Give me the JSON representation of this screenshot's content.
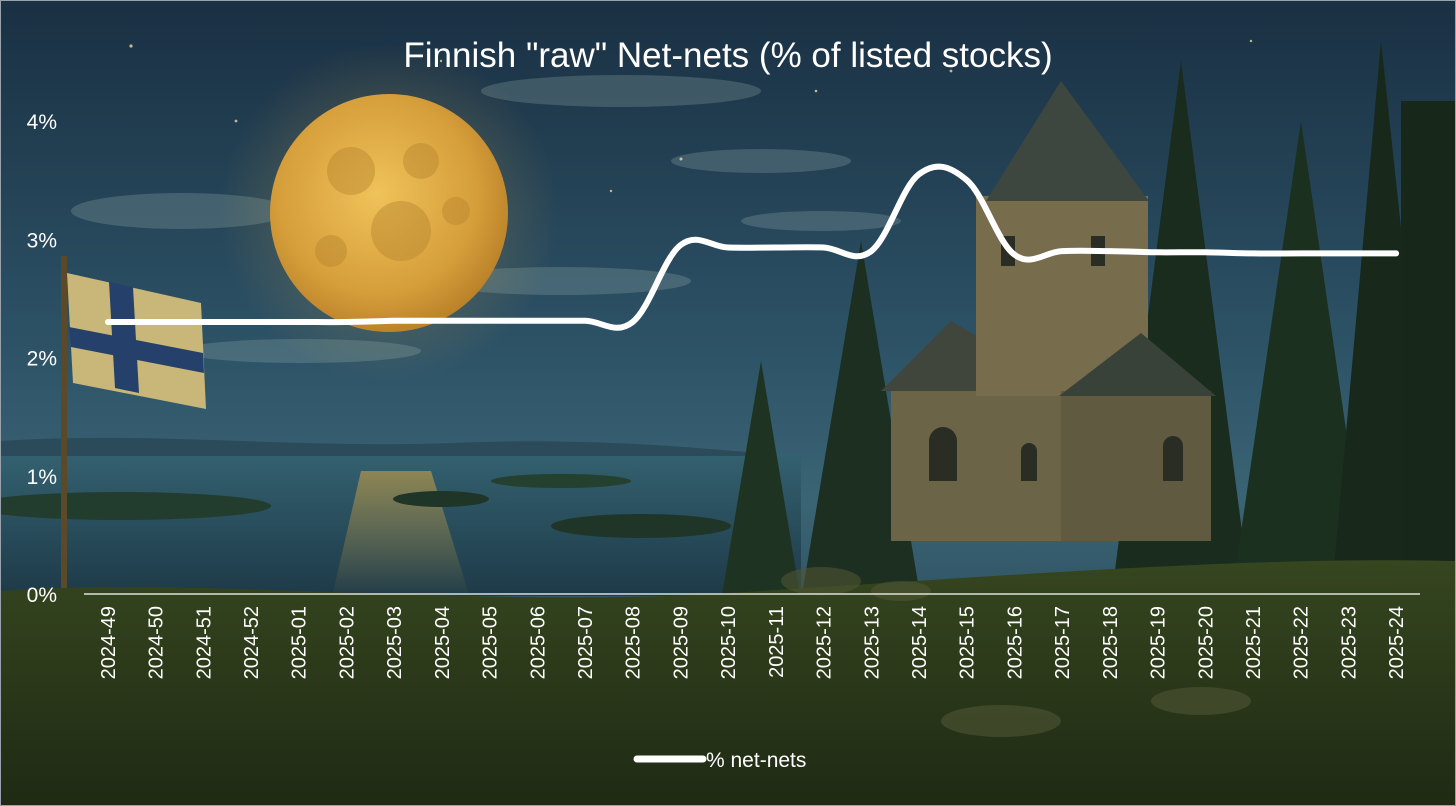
{
  "chart_data": {
    "type": "line",
    "title": "Finnish \"raw\" Net-nets (% of listed stocks)",
    "xlabel": "",
    "ylabel": "",
    "y_unit": "%",
    "ylim": [
      0,
      4
    ],
    "y_ticks": [
      0,
      1,
      2,
      3,
      4
    ],
    "y_tick_labels": [
      "0%",
      "1%",
      "2%",
      "3%",
      "4%"
    ],
    "grid": false,
    "legend_position": "bottom",
    "categories": [
      "2024-49",
      "2024-50",
      "2024-51",
      "2024-52",
      "2025-01",
      "2025-02",
      "2025-03",
      "2025-04",
      "2025-05",
      "2025-06",
      "2025-07",
      "2025-08",
      "2025-09",
      "2025-10",
      "2025-11",
      "2025-12",
      "2025-13",
      "2025-14",
      "2025-15",
      "2025-16",
      "2025-17",
      "2025-18",
      "2025-19",
      "2025-20",
      "2025-21",
      "2025-22",
      "2025-23",
      "2025-24"
    ],
    "series": [
      {
        "name": "% net-nets",
        "color": "#ffffff",
        "values": [
          2.3,
          2.3,
          2.3,
          2.3,
          2.3,
          2.3,
          2.31,
          2.31,
          2.31,
          2.31,
          2.31,
          2.3,
          2.95,
          2.93,
          2.93,
          2.93,
          2.9,
          3.55,
          3.5,
          2.87,
          2.9,
          2.9,
          2.89,
          2.89,
          2.88,
          2.88,
          2.88,
          2.88
        ]
      }
    ]
  },
  "background": {
    "scene": "moonlit-lake-church-painting",
    "colors": {
      "sky_top": "#1d3447",
      "sky_mid": "#2c5064",
      "moon": "#d9a640",
      "water": "#2a5266",
      "forest": "#1c2f20",
      "ground": "#3e4a22"
    }
  }
}
